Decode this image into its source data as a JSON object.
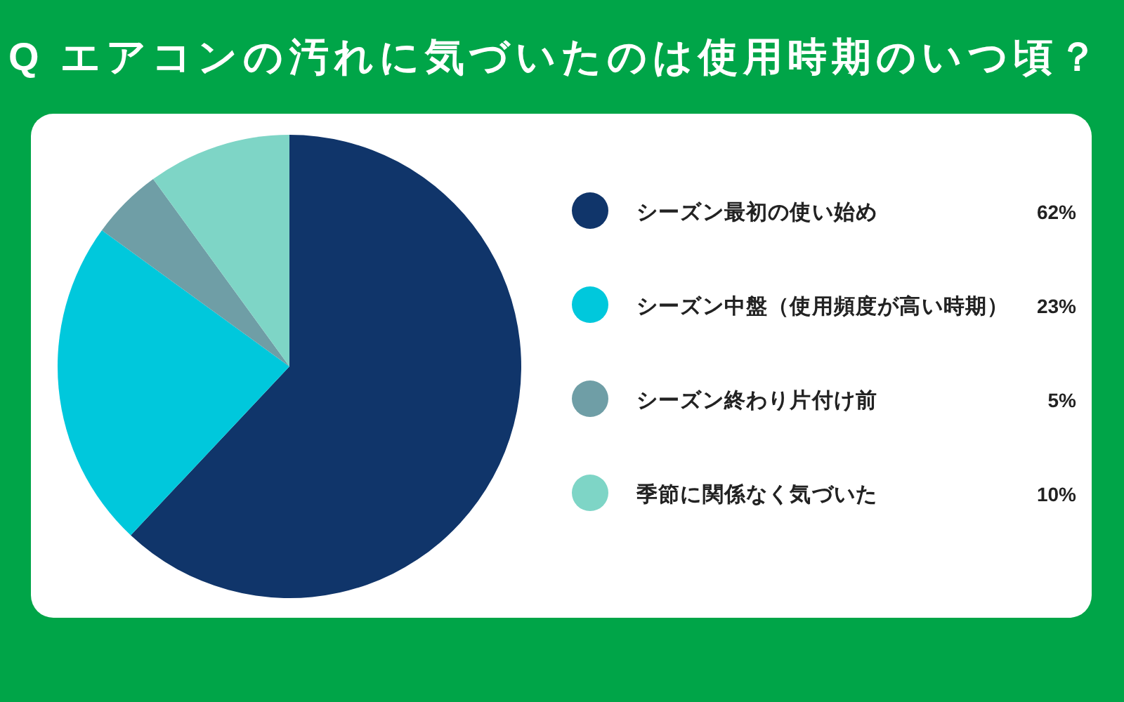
{
  "chart_data": {
    "type": "pie",
    "title": "Q エアコンの汚れに気づいたのは使用時期のいつ頃？",
    "categories": [
      "シーズン最初の使い始め",
      "シーズン中盤（使用頻度が高い時期）",
      "シーズン終わり片付け前",
      "季節に関係なく気づいた"
    ],
    "values": [
      62,
      23,
      5,
      10
    ],
    "value_labels": [
      "62%",
      "23%",
      "5%",
      "10%"
    ],
    "colors": [
      "#10356a",
      "#00c8dc",
      "#6f9ea6",
      "#7ed5c6"
    ],
    "legend": "right"
  }
}
